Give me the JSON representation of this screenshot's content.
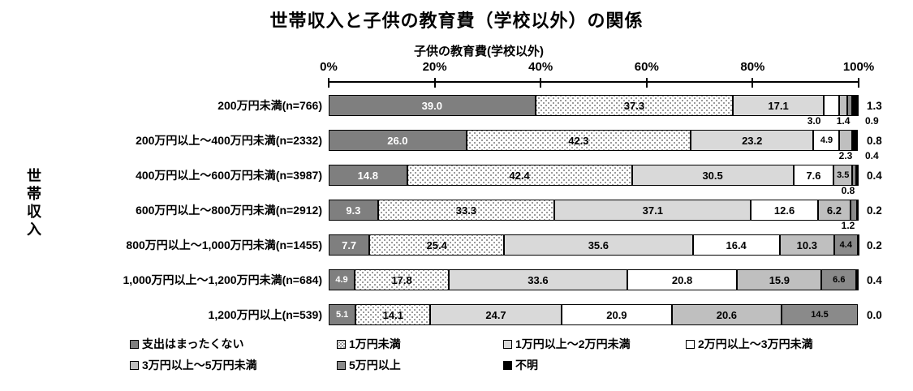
{
  "title": "世帯収入と子供の教育費（学校以外）の関係",
  "chart_data": {
    "type": "bar",
    "stacked": true,
    "orientation": "horizontal",
    "title": "世帯収入と子供の教育費（学校以外）の関係",
    "xlabel": "子供の教育費(学校以外)",
    "ylabel": "世帯収入",
    "xlim": [
      0,
      100
    ],
    "x_ticks": [
      "0%",
      "20%",
      "40%",
      "60%",
      "80%",
      "100%"
    ],
    "legend_position": "bottom",
    "series_names": [
      "支出はまったくない",
      "1万円未満",
      "1万円以上～2万円未満",
      "2万円以上～3万円未満",
      "3万円以上～5万円未満",
      "5万円以上",
      "不明"
    ],
    "series_colors": [
      "#7f7f7f",
      "pattern:dots",
      "#d9d9d9",
      "#ffffff",
      "#bfbfbf",
      "#8a8a8a",
      "#000000"
    ],
    "categories": [
      "200万円未満(n=766)",
      "200万円以上～400万円未満(n=2332)",
      "400万円以上～600万円未満(n=3987)",
      "600万円以上～800万円未満(n=2912)",
      "800万円以上～1,000万円未満(n=1455)",
      "1,000万円以上～1,200万円未満(n=684)",
      "1,200万円以上(n=539)"
    ],
    "rows": [
      {
        "category": "200万円未満(n=766)",
        "values": [
          39.0,
          37.3,
          17.1,
          3.0,
          1.4,
          0.9,
          1.3
        ],
        "label_positions": [
          "inside",
          "inside",
          "inside",
          "below",
          "below",
          "below-right",
          "right"
        ]
      },
      {
        "category": "200万円以上～400万円未満(n=2332)",
        "values": [
          26.0,
          42.3,
          23.2,
          4.9,
          2.3,
          0.4,
          0.8
        ],
        "label_positions": [
          "inside",
          "inside",
          "inside",
          "inside",
          "below",
          "below-right",
          "right"
        ]
      },
      {
        "category": "400万円以上～600万円未満(n=3987)",
        "values": [
          14.8,
          42.4,
          30.5,
          7.6,
          3.5,
          0.8,
          0.4
        ],
        "label_positions": [
          "inside",
          "inside",
          "inside",
          "inside",
          "inside",
          "below",
          "right"
        ]
      },
      {
        "category": "600万円以上～800万円未満(n=2912)",
        "values": [
          9.3,
          33.3,
          37.1,
          12.6,
          6.2,
          1.2,
          0.2
        ],
        "label_positions": [
          "inside",
          "inside",
          "inside",
          "inside",
          "inside",
          "below",
          "right"
        ]
      },
      {
        "category": "800万円以上～1,000万円未満(n=1455)",
        "values": [
          7.7,
          25.4,
          35.6,
          16.4,
          10.3,
          4.4,
          0.2
        ],
        "label_positions": [
          "inside",
          "inside",
          "inside",
          "inside",
          "inside",
          "inside",
          "right"
        ]
      },
      {
        "category": "1,000万円以上～1,200万円未満(n=684)",
        "values": [
          4.9,
          17.8,
          33.6,
          20.8,
          15.9,
          6.6,
          0.4
        ],
        "label_positions": [
          "inside",
          "inside",
          "inside",
          "inside",
          "inside",
          "inside",
          "right"
        ]
      },
      {
        "category": "1,200万円以上(n=539)",
        "values": [
          5.1,
          14.1,
          24.7,
          20.9,
          20.6,
          14.5,
          0.0
        ],
        "label_positions": [
          "inside",
          "inside",
          "inside",
          "inside",
          "inside",
          "inside",
          "right"
        ]
      }
    ],
    "legend_rows": [
      [
        "支出はまったくない",
        "1万円未満",
        "1万円以上～2万円未満",
        "2万円以上～3万円未満"
      ],
      [
        "3万円以上～5万円未満",
        "5万円以上",
        "不明"
      ]
    ]
  }
}
